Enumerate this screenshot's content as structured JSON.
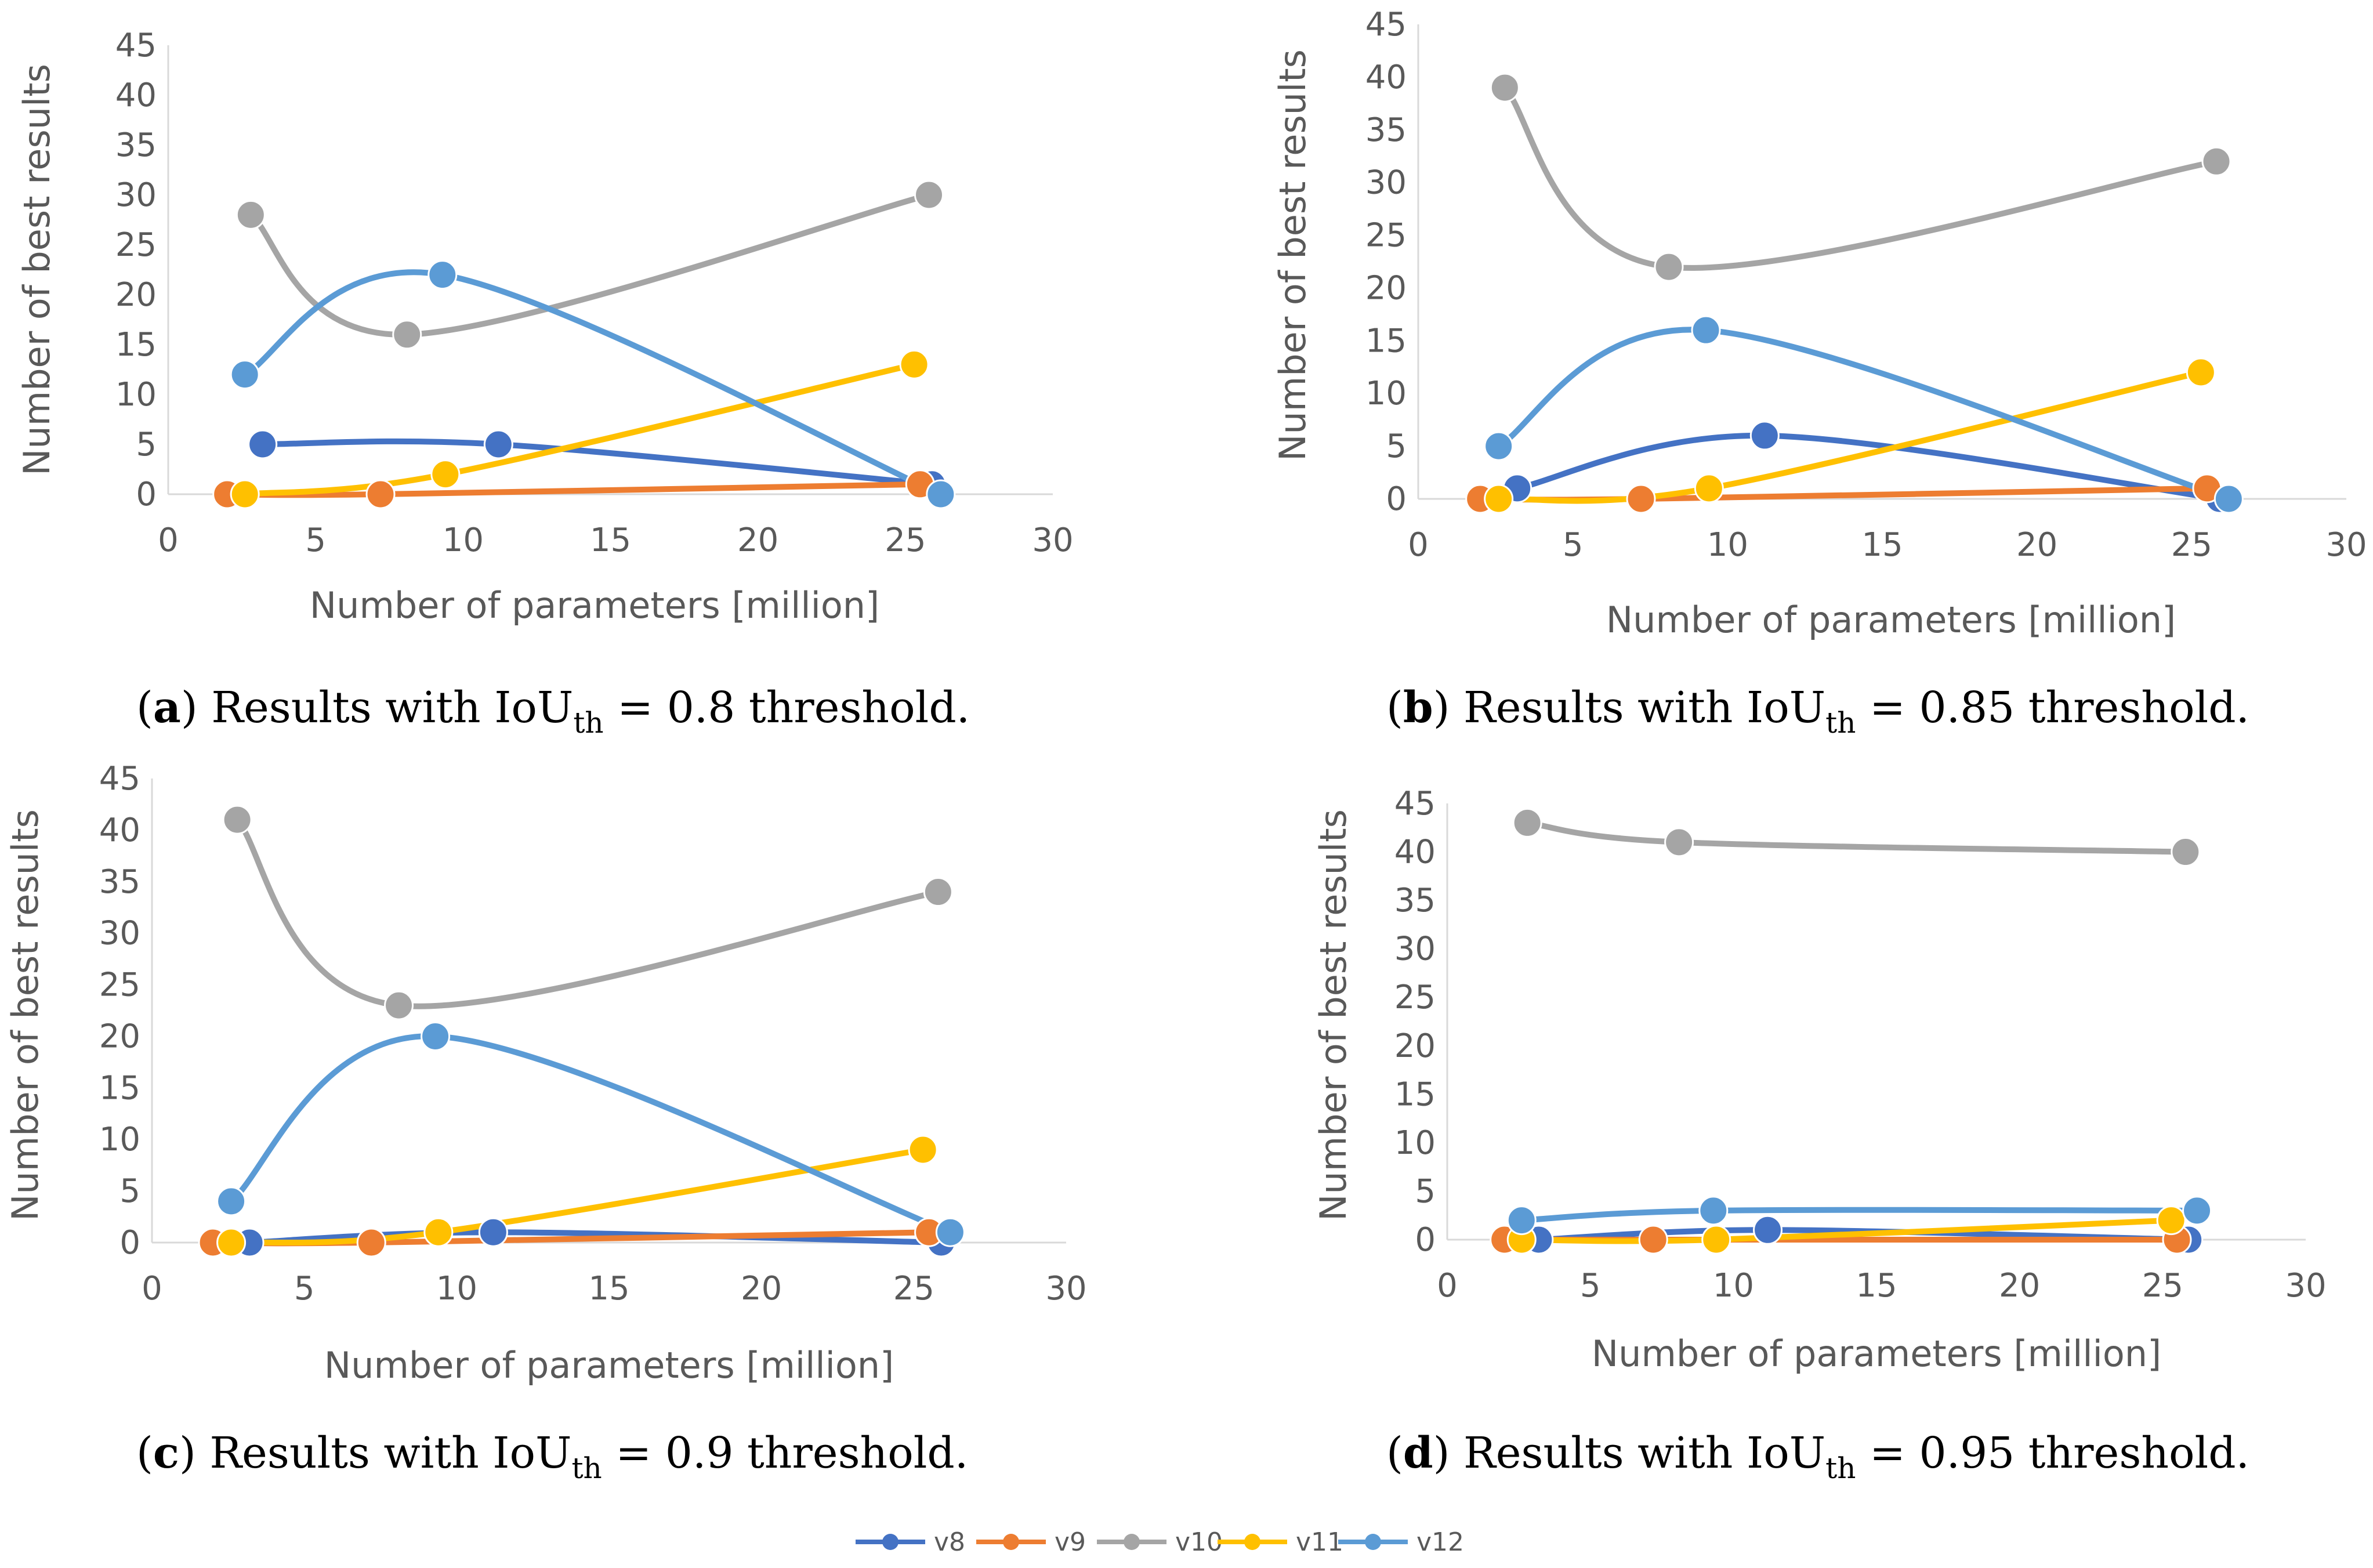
{
  "chart_data": [
    {
      "type": "line",
      "panel_letter": "a",
      "caption": {
        "prefix": "Results with IoU",
        "subscript": "th",
        "suffix": " = 0.8  threshold."
      },
      "xlabel": "Number of parameters [million]",
      "ylabel": "Number of  best results",
      "xlim": [
        0,
        30
      ],
      "ylim": [
        0,
        45
      ],
      "xticks": [
        "0",
        "5",
        "10",
        "15",
        "20",
        "25",
        "30"
      ],
      "yticks": [
        "0",
        "5",
        "10",
        "15",
        "20",
        "25",
        "30",
        "35",
        "40",
        "45"
      ],
      "series": [
        {
          "name": "v8",
          "x": [
            3.2,
            11.2,
            25.9
          ],
          "y": [
            5,
            5,
            1
          ]
        },
        {
          "name": "v9",
          "x": [
            2.0,
            7.2,
            25.5
          ],
          "y": [
            0,
            0,
            1
          ]
        },
        {
          "name": "v10",
          "x": [
            2.8,
            8.1,
            25.8
          ],
          "y": [
            28,
            16,
            30
          ]
        },
        {
          "name": "v11",
          "x": [
            2.6,
            9.4,
            25.3
          ],
          "y": [
            0,
            2,
            13
          ]
        },
        {
          "name": "v12",
          "x": [
            2.6,
            9.3,
            26.2
          ],
          "y": [
            12,
            22,
            0
          ]
        }
      ]
    },
    {
      "type": "line",
      "panel_letter": "b",
      "caption": {
        "prefix": "Results with IoU",
        "subscript": "th",
        "suffix": " = 0.85  threshold."
      },
      "xlabel": "Number of parameters [million]",
      "ylabel": "Number of  best results",
      "xlim": [
        0,
        30
      ],
      "ylim": [
        0,
        45
      ],
      "xticks": [
        "0",
        "5",
        "10",
        "15",
        "20",
        "25",
        "30"
      ],
      "yticks": [
        "0",
        "5",
        "10",
        "15",
        "20",
        "25",
        "30",
        "35",
        "40",
        "45"
      ],
      "series": [
        {
          "name": "v8",
          "x": [
            3.2,
            11.2,
            25.9
          ],
          "y": [
            1,
            6,
            0
          ]
        },
        {
          "name": "v9",
          "x": [
            2.0,
            7.2,
            25.5
          ],
          "y": [
            0,
            0,
            1
          ]
        },
        {
          "name": "v10",
          "x": [
            2.8,
            8.1,
            25.8
          ],
          "y": [
            39,
            22,
            32
          ]
        },
        {
          "name": "v11",
          "x": [
            2.6,
            9.4,
            25.3
          ],
          "y": [
            0,
            1,
            12
          ]
        },
        {
          "name": "v12",
          "x": [
            2.6,
            9.3,
            26.2
          ],
          "y": [
            5,
            16,
            0
          ]
        }
      ]
    },
    {
      "type": "line",
      "panel_letter": "c",
      "caption": {
        "prefix": "Results with IoU",
        "subscript": "th",
        "suffix": " = 0.9  threshold."
      },
      "xlabel": "Number of parameters [million]",
      "ylabel": "Number of  best results",
      "xlim": [
        0,
        30
      ],
      "ylim": [
        0,
        45
      ],
      "xticks": [
        "0",
        "5",
        "10",
        "15",
        "20",
        "25",
        "30"
      ],
      "yticks": [
        "0",
        "5",
        "10",
        "15",
        "20",
        "25",
        "30",
        "35",
        "40",
        "45"
      ],
      "series": [
        {
          "name": "v8",
          "x": [
            3.2,
            11.2,
            25.9
          ],
          "y": [
            0,
            1,
            0
          ]
        },
        {
          "name": "v9",
          "x": [
            2.0,
            7.2,
            25.5
          ],
          "y": [
            0,
            0,
            1
          ]
        },
        {
          "name": "v10",
          "x": [
            2.8,
            8.1,
            25.8
          ],
          "y": [
            41,
            23,
            34
          ]
        },
        {
          "name": "v11",
          "x": [
            2.6,
            9.4,
            25.3
          ],
          "y": [
            0,
            1,
            9
          ]
        },
        {
          "name": "v12",
          "x": [
            2.6,
            9.3,
            26.2
          ],
          "y": [
            4,
            20,
            1
          ]
        }
      ]
    },
    {
      "type": "line",
      "panel_letter": "d",
      "caption": {
        "prefix": "Results with IoU",
        "subscript": "th",
        "suffix": " = 0.95  threshold."
      },
      "xlabel": "Number of parameters [million]",
      "ylabel": "Number of  best results",
      "xlim": [
        0,
        30
      ],
      "ylim": [
        0,
        45
      ],
      "xticks": [
        "0",
        "5",
        "10",
        "15",
        "20",
        "25",
        "30"
      ],
      "yticks": [
        "0",
        "5",
        "10",
        "15",
        "20",
        "25",
        "30",
        "35",
        "40",
        "45"
      ],
      "series": [
        {
          "name": "v8",
          "x": [
            3.2,
            11.2,
            25.9
          ],
          "y": [
            0,
            1,
            0
          ]
        },
        {
          "name": "v9",
          "x": [
            2.0,
            7.2,
            25.5
          ],
          "y": [
            0,
            0,
            0
          ]
        },
        {
          "name": "v10",
          "x": [
            2.8,
            8.1,
            25.8
          ],
          "y": [
            43,
            41,
            40
          ]
        },
        {
          "name": "v11",
          "x": [
            2.6,
            9.4,
            25.3
          ],
          "y": [
            0,
            0,
            2
          ]
        },
        {
          "name": "v12",
          "x": [
            2.6,
            9.3,
            26.2
          ],
          "y": [
            2,
            3,
            3
          ]
        }
      ]
    }
  ],
  "legend": [
    {
      "name": "v8",
      "color": "#4472C4"
    },
    {
      "name": "v9",
      "color": "#ED7D31"
    },
    {
      "name": "v10",
      "color": "#A5A5A5"
    },
    {
      "name": "v11",
      "color": "#FFC000"
    },
    {
      "name": "v12",
      "color": "#5B9BD5"
    }
  ]
}
